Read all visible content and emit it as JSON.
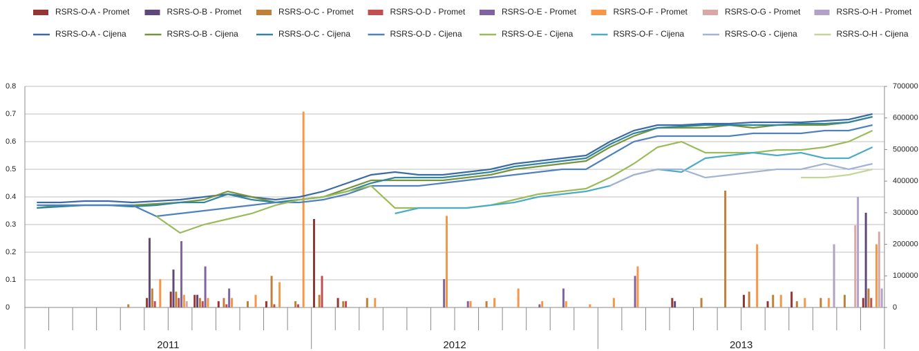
{
  "chart_data": {
    "type": "combo",
    "categories": [
      null,
      null,
      null,
      null,
      null,
      null,
      null,
      null,
      null,
      null,
      null,
      null,
      null,
      null,
      null,
      null,
      null,
      null,
      null,
      null,
      null,
      null,
      null,
      null,
      null,
      null,
      null,
      null,
      null,
      null,
      null,
      null,
      null,
      null,
      null,
      null
    ],
    "x_groups": [
      "2011",
      "2012",
      "2013"
    ],
    "ylim": [
      0,
      0.8
    ],
    "yticks": [
      0,
      0.1,
      0.2,
      0.3,
      0.4,
      0.5,
      0.6,
      0.7,
      0.8
    ],
    "y2lim": [
      0,
      700000
    ],
    "y2ticks": [
      0,
      100000,
      200000,
      300000,
      400000,
      500000,
      600000,
      700000
    ],
    "grid": true,
    "legend": "top",
    "series": [
      {
        "name": "RSRS-O-A - Promet",
        "type": "bar",
        "axis": "y2",
        "color": "#943634",
        "values": [
          0,
          0,
          0,
          0,
          0,
          30000,
          50000,
          40000,
          20000,
          0,
          20000,
          0,
          280000,
          30000,
          0,
          0,
          0,
          0,
          0,
          0,
          0,
          0,
          0,
          0,
          0,
          0,
          0,
          30000,
          0,
          0,
          40000,
          20000,
          50000,
          0,
          0,
          30000
        ]
      },
      {
        "name": "RSRS-O-B - Promet",
        "type": "bar",
        "axis": "y2",
        "color": "#5f497a",
        "values": [
          0,
          0,
          0,
          0,
          0,
          220000,
          120000,
          40000,
          0,
          0,
          0,
          0,
          0,
          0,
          0,
          0,
          0,
          0,
          0,
          0,
          0,
          0,
          0,
          0,
          0,
          0,
          0,
          20000,
          0,
          0,
          0,
          0,
          0,
          0,
          0,
          300000
        ]
      },
      {
        "name": "RSRS-O-C - Promet",
        "type": "bar",
        "axis": "y2",
        "color": "#c0803b",
        "values": [
          0,
          0,
          0,
          0,
          10000,
          60000,
          50000,
          30000,
          30000,
          20000,
          100000,
          20000,
          40000,
          20000,
          30000,
          0,
          0,
          0,
          0,
          20000,
          0,
          0,
          0,
          0,
          0,
          0,
          0,
          0,
          30000,
          370000,
          50000,
          40000,
          20000,
          30000,
          40000,
          60000
        ]
      },
      {
        "name": "RSRS-O-D - Promet",
        "type": "bar",
        "axis": "y2",
        "color": "#c0504d",
        "values": [
          0,
          0,
          0,
          0,
          0,
          20000,
          30000,
          20000,
          10000,
          0,
          10000,
          10000,
          100000,
          20000,
          0,
          0,
          0,
          0,
          0,
          0,
          0,
          0,
          0,
          0,
          0,
          0,
          0,
          0,
          0,
          0,
          0,
          0,
          0,
          0,
          0,
          30000
        ]
      },
      {
        "name": "RSRS-O-E - Promet",
        "type": "bar",
        "axis": "y2",
        "color": "#8064a2",
        "values": [
          0,
          0,
          0,
          0,
          0,
          0,
          210000,
          130000,
          60000,
          0,
          0,
          0,
          0,
          0,
          0,
          0,
          0,
          90000,
          20000,
          0,
          0,
          10000,
          60000,
          0,
          0,
          100000,
          0,
          0,
          0,
          0,
          0,
          0,
          0,
          0,
          0,
          0
        ]
      },
      {
        "name": "RSRS-O-F - Promet",
        "type": "bar",
        "axis": "y2",
        "color": "#f79646",
        "values": [
          0,
          0,
          0,
          0,
          0,
          90000,
          40000,
          30000,
          30000,
          40000,
          80000,
          620000,
          0,
          0,
          30000,
          0,
          0,
          290000,
          20000,
          30000,
          60000,
          20000,
          20000,
          10000,
          30000,
          130000,
          0,
          0,
          0,
          0,
          200000,
          40000,
          30000,
          30000,
          0,
          200000
        ]
      },
      {
        "name": "RSRS-O-G - Promet",
        "type": "bar",
        "axis": "y2",
        "color": "#d9a8a6",
        "values": [
          0,
          0,
          0,
          0,
          0,
          0,
          20000,
          0,
          0,
          0,
          0,
          0,
          0,
          0,
          0,
          0,
          0,
          0,
          0,
          0,
          0,
          0,
          0,
          0,
          0,
          0,
          0,
          0,
          0,
          0,
          0,
          0,
          0,
          0,
          260000,
          240000
        ]
      },
      {
        "name": "RSRS-O-H - Promet",
        "type": "bar",
        "axis": "y2",
        "color": "#b3a2c7",
        "values": [
          0,
          0,
          0,
          0,
          0,
          0,
          0,
          0,
          0,
          0,
          0,
          0,
          0,
          0,
          0,
          0,
          0,
          0,
          0,
          0,
          0,
          0,
          0,
          0,
          0,
          0,
          0,
          0,
          0,
          0,
          0,
          0,
          0,
          200000,
          350000,
          60000
        ]
      },
      {
        "name": "RSRS-O-A - Cijena",
        "type": "line",
        "color": "#3c6aa5",
        "values": [
          0.38,
          0.38,
          0.385,
          0.385,
          0.38,
          0.385,
          0.39,
          0.4,
          0.41,
          0.4,
          0.39,
          0.4,
          0.42,
          0.45,
          0.48,
          0.49,
          0.48,
          0.48,
          0.49,
          0.5,
          0.52,
          0.53,
          0.54,
          0.55,
          0.6,
          0.64,
          0.66,
          0.66,
          0.665,
          0.665,
          0.67,
          0.67,
          0.67,
          0.675,
          0.68,
          0.7
        ]
      },
      {
        "name": "RSRS-O-B - Cijena",
        "type": "line",
        "color": "#77933c",
        "values": [
          0.36,
          0.37,
          0.37,
          0.37,
          0.37,
          0.375,
          0.38,
          0.39,
          0.42,
          0.4,
          0.38,
          0.39,
          0.4,
          0.43,
          0.46,
          0.46,
          0.46,
          0.46,
          0.47,
          0.48,
          0.5,
          0.51,
          0.52,
          0.53,
          0.58,
          0.62,
          0.65,
          0.65,
          0.65,
          0.66,
          0.65,
          0.66,
          0.66,
          0.66,
          0.67,
          0.69
        ]
      },
      {
        "name": "RSRS-O-C - Cijena",
        "type": "line",
        "color": "#31859c",
        "values": [
          0.36,
          0.365,
          0.37,
          0.37,
          0.365,
          0.37,
          0.38,
          0.38,
          0.41,
          0.39,
          0.38,
          0.39,
          0.4,
          0.42,
          0.45,
          0.47,
          0.47,
          0.47,
          0.48,
          0.49,
          0.51,
          0.52,
          0.53,
          0.54,
          0.59,
          0.63,
          0.65,
          0.655,
          0.66,
          0.66,
          0.66,
          0.66,
          0.665,
          0.665,
          0.67,
          0.69
        ]
      },
      {
        "name": "RSRS-O-D - Cijena",
        "type": "line",
        "color": "#4f81bd",
        "values": [
          0.37,
          0.37,
          0.37,
          0.37,
          0.37,
          0.33,
          0.34,
          0.35,
          0.36,
          0.37,
          0.38,
          0.38,
          0.39,
          0.41,
          0.44,
          0.44,
          0.44,
          0.45,
          0.46,
          0.47,
          0.48,
          0.49,
          0.5,
          0.5,
          0.55,
          0.6,
          0.62,
          0.62,
          0.62,
          0.62,
          0.63,
          0.63,
          0.63,
          0.64,
          0.64,
          0.66
        ]
      },
      {
        "name": "RSRS-O-E - Cijena",
        "type": "line",
        "color": "#9bbb59",
        "values": [
          null,
          null,
          null,
          null,
          null,
          0.33,
          0.27,
          0.3,
          0.32,
          0.34,
          0.37,
          0.39,
          0.4,
          0.42,
          0.44,
          0.36,
          0.36,
          0.36,
          0.36,
          0.37,
          0.39,
          0.41,
          0.42,
          0.43,
          0.47,
          0.52,
          0.58,
          0.6,
          0.56,
          0.56,
          0.56,
          0.57,
          0.57,
          0.58,
          0.6,
          0.64
        ]
      },
      {
        "name": "RSRS-O-F - Cijena",
        "type": "line",
        "color": "#4bacc6",
        "values": [
          null,
          null,
          null,
          null,
          null,
          null,
          null,
          null,
          null,
          null,
          null,
          null,
          null,
          null,
          null,
          0.34,
          0.36,
          0.36,
          0.36,
          0.37,
          0.38,
          0.4,
          0.41,
          0.42,
          0.44,
          0.48,
          0.5,
          0.49,
          0.54,
          0.55,
          0.56,
          0.55,
          0.56,
          0.54,
          0.54,
          0.58
        ]
      },
      {
        "name": "RSRS-O-G - Cijena",
        "type": "line",
        "color": "#a3b3d1",
        "values": [
          null,
          null,
          null,
          null,
          null,
          null,
          null,
          null,
          null,
          null,
          null,
          null,
          null,
          null,
          null,
          null,
          null,
          null,
          null,
          null,
          null,
          null,
          null,
          null,
          0.44,
          0.48,
          0.5,
          0.5,
          0.47,
          0.48,
          0.49,
          0.5,
          0.5,
          0.52,
          0.5,
          0.52
        ]
      },
      {
        "name": "RSRS-O-H - Cijena",
        "type": "line",
        "color": "#c3d69b",
        "values": [
          null,
          null,
          null,
          null,
          null,
          null,
          null,
          null,
          null,
          null,
          null,
          null,
          null,
          null,
          null,
          null,
          null,
          null,
          null,
          null,
          null,
          null,
          null,
          null,
          null,
          null,
          null,
          null,
          null,
          null,
          null,
          null,
          0.47,
          0.47,
          0.48,
          0.5
        ]
      }
    ]
  }
}
